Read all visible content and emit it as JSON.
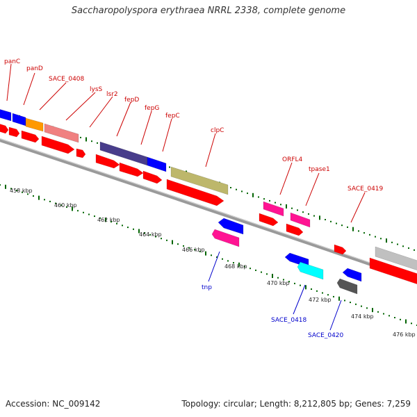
{
  "title": "Saccharopolyspora erythraea NRRL 2338, complete genome",
  "footer": {
    "accession": "Accession: NC_009142",
    "stats": "Topology: circular; Length: 8,212,805 bp; Genes: 7,259"
  },
  "colors": {
    "backbone": "#7f7f7f",
    "cds": "#ff0000",
    "tick": "#006400",
    "label_top": "#cc0000",
    "label_bottom": "#0000cc"
  },
  "ruler_labels": [
    "458 kbp",
    "460 kbp",
    "462 kbp",
    "464 kbp",
    "466 kbp",
    "468 kbp",
    "470 kbp",
    "472 kbp",
    "474 kbp",
    "476 kbp"
  ],
  "gene_labels_top": [
    "panC",
    "panD",
    "SACE_0408",
    "lysS",
    "lsr2",
    "fepD",
    "fepG",
    "fepC",
    "clpC",
    "ORFL4",
    "tpase1",
    "SACE_0419"
  ],
  "gene_labels_bottom": [
    "tnp",
    "SACE_0418",
    "SACE_0420"
  ],
  "feature_colors": {
    "panC": "#0000ff",
    "panD": "#0000ff",
    "SACE_0408": "#ff9900",
    "lysS": "#f08080",
    "fepD": "#483d8b",
    "fepG": "#0000ff",
    "clpC": "#bdb76b",
    "ORFL4": "#ff1493",
    "tpase1": "#ff1493",
    "SACE_0419": "#c0c0c0",
    "tnp_top": "#0000ff",
    "tnp_bottom": "#ff1493",
    "SACE_0418_top": "#0000ff",
    "SACE_0418_bottom": "#00ffff",
    "SACE_0420_top": "#0000ff",
    "SACE_0420_bottom": "#555555"
  }
}
